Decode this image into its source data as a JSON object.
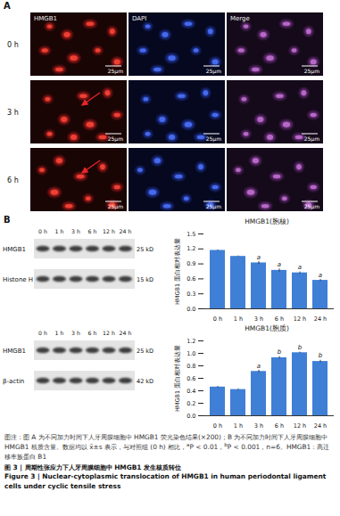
{
  "panel_a": {
    "label": "A",
    "columns": [
      "HMGB1",
      "DAPI",
      "Merge"
    ],
    "rows": [
      "0 h",
      "3 h",
      "6 h"
    ],
    "scale_bar": "25μm"
  },
  "panel_b": {
    "label": "B",
    "lanes": [
      "0 h",
      "1 h",
      "3 h",
      "6 h",
      "12 h",
      "24 h"
    ],
    "blots": [
      {
        "rows": [
          {
            "name": "HMGB1",
            "size": "25 kD"
          },
          {
            "name": "Histone H",
            "size": "15 kD"
          }
        ]
      },
      {
        "rows": [
          {
            "name": "HMGB1",
            "size": "25 kD"
          },
          {
            "name": "β-actin",
            "size": "42 kD"
          }
        ]
      }
    ]
  },
  "chart_data": [
    {
      "type": "bar",
      "title": "HMGB1(胞核)",
      "y_label": "HMGB1 蛋白相对表达量",
      "categories": [
        "0 h",
        "1 h",
        "3 h",
        "6 h",
        "12 h",
        "24 h"
      ],
      "values": [
        1.17,
        1.05,
        0.92,
        0.77,
        0.72,
        0.57
      ],
      "errors": [
        0.01,
        0.01,
        0.03,
        0.03,
        0.02,
        0.02
      ],
      "significance": [
        null,
        null,
        "a",
        "a",
        "a",
        "a"
      ],
      "color": "#3f7fd6",
      "ylim": [
        0,
        1.5
      ],
      "yticks": [
        {
          "value": 0,
          "label": "0.0"
        },
        {
          "value": 0.3,
          "label": "0.3"
        },
        {
          "value": 0.6,
          "label": "0.6"
        },
        {
          "value": 0.9,
          "label": "0.9"
        },
        {
          "value": 1.2,
          "label": "1.2"
        },
        {
          "value": 1.5,
          "label": "1.5"
        }
      ],
      "grid": false
    },
    {
      "type": "bar",
      "title": "HMGB1(胞质)",
      "y_label": "HMGB1 蛋白相对表达量",
      "categories": [
        "0 h",
        "1 h",
        "3 h",
        "6 h",
        "12 h",
        "24 h"
      ],
      "values": [
        0.46,
        0.42,
        0.71,
        0.93,
        1.01,
        0.87
      ],
      "errors": [
        0.01,
        0.01,
        0.02,
        0.02,
        0.01,
        0.02
      ],
      "significance": [
        null,
        null,
        "a",
        "b",
        "b",
        "b"
      ],
      "color": "#3f7fd6",
      "ylim": [
        0,
        1.2
      ],
      "yticks": [
        {
          "value": 0,
          "label": "0.0"
        },
        {
          "value": 0.2,
          "label": "0.2"
        },
        {
          "value": 0.4,
          "label": "0.4"
        },
        {
          "value": 0.6,
          "label": "0.6"
        },
        {
          "value": 0.8,
          "label": "0.8"
        },
        {
          "value": 1.0,
          "label": "1.0"
        },
        {
          "value": 1.2,
          "label": "1.2"
        }
      ],
      "grid": false
    }
  ],
  "caption": {
    "note": [
      {
        "text": "图注：图 A 为不同加力时间下人牙周膜细胞中 HMGB1 荧光染色结果(×200)；B 为不同加力时间下人牙周膜细胞中 HMGB1 核质含量。数据均以 x̄±s 表示，与对照组 (0 h) 相比，"
      },
      {
        "sup": "a"
      },
      {
        "text": "P < 0.01，"
      },
      {
        "sup": "b"
      },
      {
        "text": "P < 0.001，n=6。HMGB1：高迁移率族蛋白 B1"
      }
    ],
    "figure_cn": "图 3 | 周期性张应力下人牙周膜细胞中 HMGB1 发生核质转位",
    "figure_en": "Figure 3 | Nuclear-cytoplasmic translocation of HMGB1 in human periodontal ligament cells under cyclic tensile stress"
  }
}
